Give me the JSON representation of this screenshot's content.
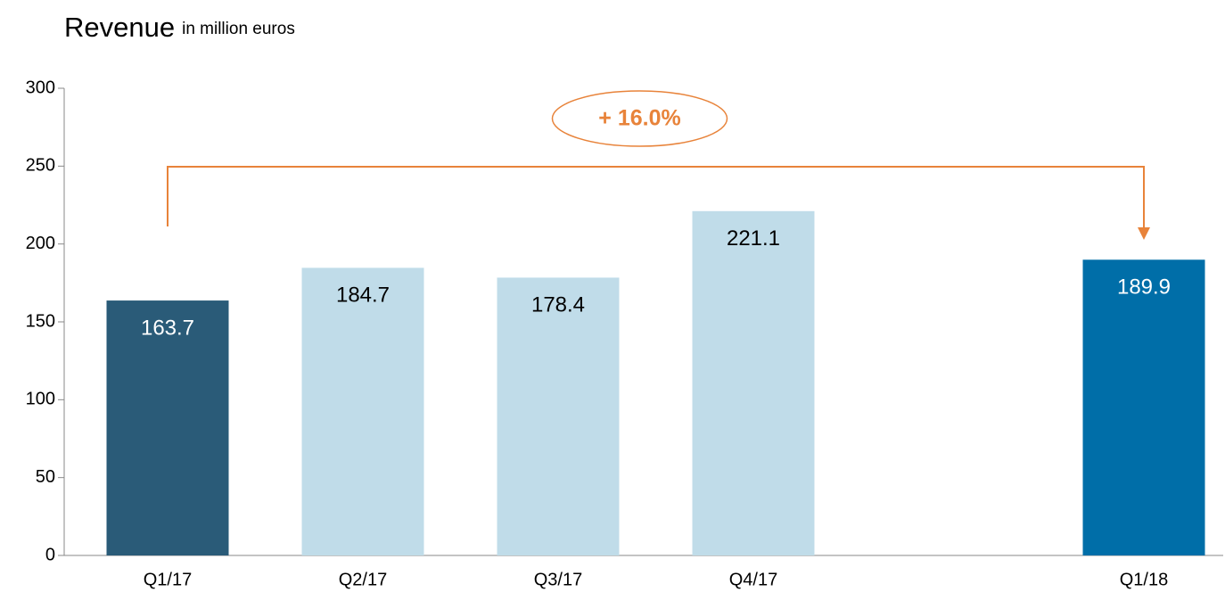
{
  "chart_data": {
    "type": "bar",
    "title": "Revenue",
    "subtitle": "in million euros",
    "categories": [
      "Q1/17",
      "Q2/17",
      "Q3/17",
      "Q4/17",
      null,
      "Q1/18"
    ],
    "values": [
      163.7,
      184.7,
      178.4,
      221.1,
      null,
      189.9
    ],
    "colors": [
      "#2a5b78",
      "#c0dce9",
      "#c0dce9",
      "#c0dce9",
      null,
      "#006ea8"
    ],
    "ylim": [
      0,
      300
    ],
    "yticks": [
      0,
      50,
      100,
      150,
      200,
      250,
      300
    ],
    "grid": false,
    "annotation": "+ 16.0%",
    "annotation_color": "#e8833a"
  }
}
